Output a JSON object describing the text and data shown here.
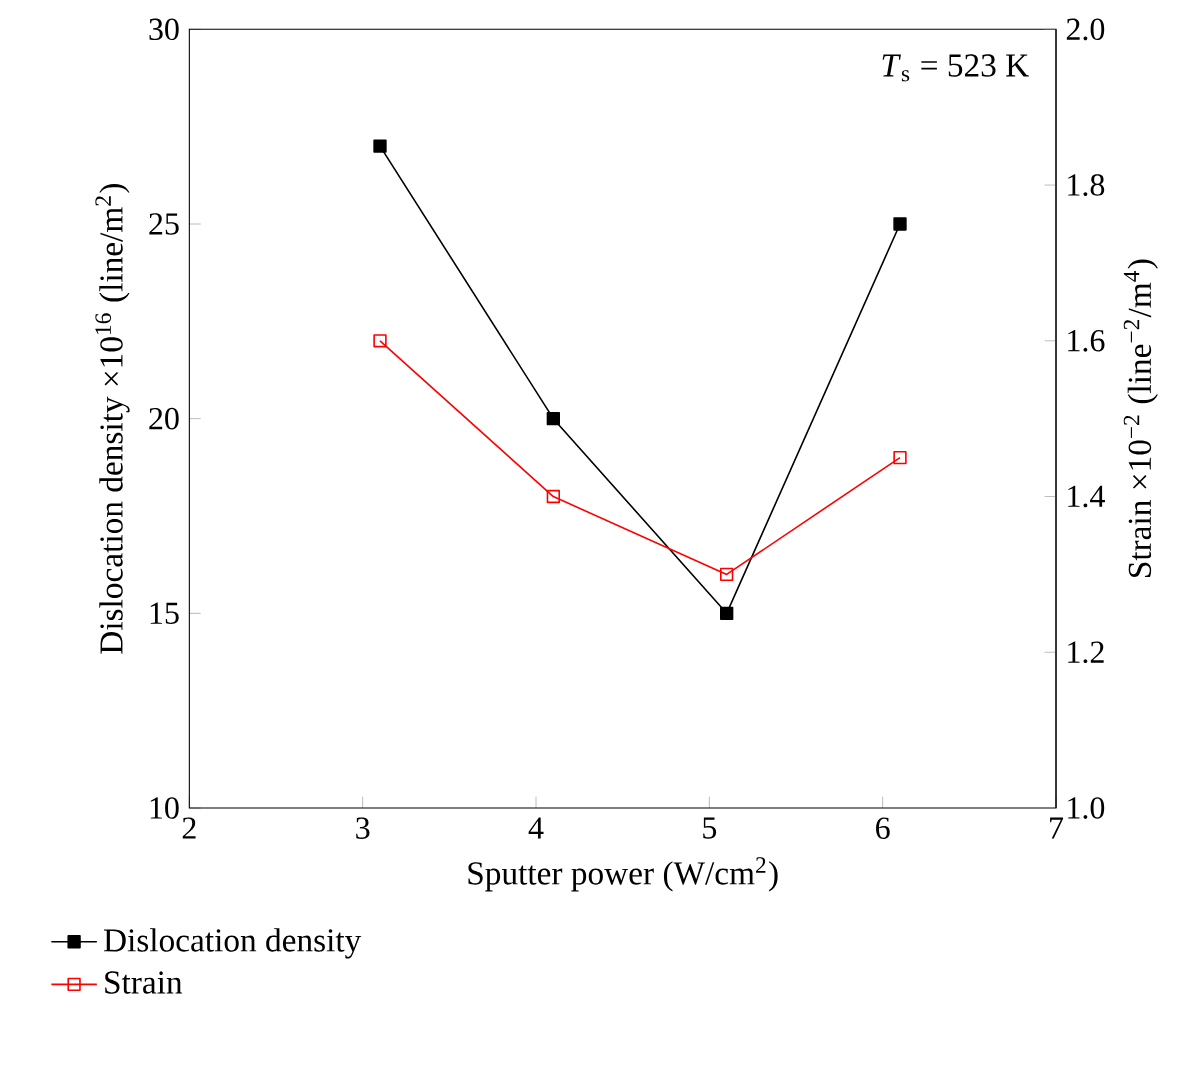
{
  "chart_data": {
    "type": "line",
    "xlabel": "Sputter power (W/cm$^{2}$)",
    "ylabel": "Dislocation density ×10$^{16}$ (line/m$^{2}$)",
    "y2label": "Strain ×10$^{−2}$ (line$^{−2}$/m$^{4}$)",
    "x": [
      3.1,
      4.1,
      5.1,
      6.1
    ],
    "series": [
      {
        "name": "Dislocation density",
        "color": "#000000",
        "values": [
          27,
          20,
          15,
          25
        ]
      },
      {
        "name": "Strain",
        "color": "#ff0000",
        "values": [
          1.6,
          1.4,
          1.3,
          1.45
        ],
        "axis": "y2"
      }
    ],
    "xlim": [
      2,
      7
    ],
    "xticks": [
      2,
      3,
      4,
      5,
      6,
      7
    ],
    "ylim": [
      10,
      30
    ],
    "yticks": [
      10,
      15,
      20,
      25,
      30
    ],
    "y2lim": [
      1.0,
      2.0
    ],
    "y2ticks": [
      {
        "value": 1.0,
        "label": "1.0"
      },
      {
        "value": 1.2,
        "label": "1.2"
      },
      {
        "value": 1.4,
        "label": "1.4"
      },
      {
        "value": 1.6,
        "label": "1.6"
      },
      {
        "value": 1.8,
        "label": "1.8"
      },
      {
        "value": 2.0,
        "label": "2.0"
      }
    ],
    "annotations": [
      "*T*$_{s}$ = 523 K"
    ],
    "marker": "square",
    "line_style": "solid",
    "legend": "bottom",
    "grid": false
  }
}
